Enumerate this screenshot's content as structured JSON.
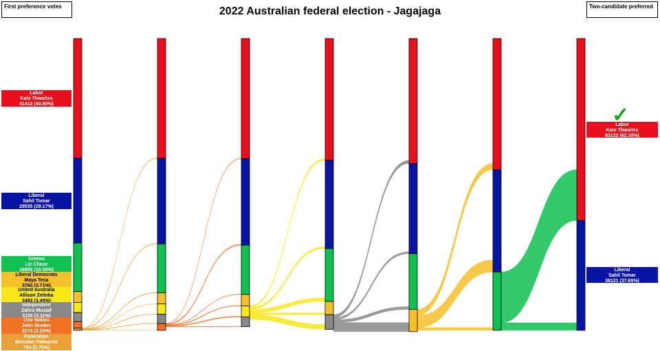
{
  "title": "2022 Australian federal election - Jagajaga",
  "first_pref_label": "First preference votes",
  "tcp_label": "Two-candidate preferred",
  "winner_icon": "checkmark-icon",
  "colors": {
    "labor": "#e8101c",
    "liberal": "#0a14a4",
    "greens": "#10c050",
    "libdem": "#f4c02c",
    "uap": "#f8e81c",
    "independent": "#888888",
    "onenation": "#f07024",
    "federation": "#e8a038"
  },
  "candidates": [
    {
      "party": "Labor",
      "name": "Kate Thwaites",
      "votes": "41412 (40.90%)",
      "color": "#e8101c"
    },
    {
      "party": "Liberal",
      "name": "Sahil Tomar",
      "votes": "29535 (29.17%)",
      "color": "#0a14a4"
    },
    {
      "party": "Greens",
      "name": "Liz Chase",
      "votes": "16855 (16.65%)",
      "color": "#10c050"
    },
    {
      "party": "Liberal Democrats",
      "name": "Maya Tesa",
      "votes": "3760 (3.71%)",
      "color": "#f4c02c"
    },
    {
      "party": "United Australia",
      "name": "Allison Zelinka",
      "votes": "3493 (3.45%)",
      "color": "#f8e81c"
    },
    {
      "party": "Independent",
      "name": "Zahra Mustaf",
      "votes": "3150 (3.11%)",
      "color": "#888888"
    },
    {
      "party": "One Nation",
      "name": "John Booker",
      "votes": "2274 (2.25%)",
      "color": "#f07024"
    },
    {
      "party": "Federation",
      "name": "Brendan Palmarini",
      "votes": "764 (0.75%)",
      "color": "#e8a038"
    }
  ],
  "final": [
    {
      "party": "Labor",
      "name": "Kate Thwaites",
      "votes": "63122 (62.35%)",
      "color": "#e8101c"
    },
    {
      "party": "Liberal",
      "name": "Sahil Tomar",
      "votes": "38121 (37.65%)",
      "color": "#0a14a4"
    }
  ],
  "chart_data": {
    "type": "sankey",
    "stages": 7,
    "order": [
      "Labor",
      "Liberal",
      "Greens",
      "Liberal Democrats",
      "United Australia",
      "Independent",
      "One Nation",
      "Federation"
    ],
    "counts": [
      [
        41412,
        29535,
        16855,
        3760,
        3493,
        3150,
        2274,
        764
      ],
      [
        41560,
        29700,
        16990,
        3810,
        3600,
        3250,
        2332,
        0
      ],
      [
        41700,
        29980,
        17100,
        3980,
        3850,
        3370,
        0,
        0
      ],
      [
        42250,
        30600,
        18350,
        4600,
        0,
        5080,
        0,
        0
      ],
      [
        43350,
        31300,
        19300,
        7730,
        0,
        0,
        0,
        0
      ],
      [
        45500,
        35500,
        20230,
        0,
        0,
        0,
        0,
        0
      ],
      [
        63122,
        38121,
        0,
        0,
        0,
        0,
        0,
        0
      ]
    ],
    "flows": [
      {
        "stage": 0,
        "from": "Federation",
        "to": {
          "Labor": 148,
          "Liberal": 165,
          "Greens": 135,
          "Liberal Democrats": 50,
          "United Australia": 107,
          "Independent": 100,
          "One Nation": 58
        }
      },
      {
        "stage": 1,
        "from": "One Nation",
        "to": {
          "Labor": 140,
          "Liberal": 280,
          "Greens": 110,
          "Liberal Democrats": 170,
          "United Australia": 250,
          "Independent": 120
        }
      },
      {
        "stage": 2,
        "from": "United Australia",
        "to": {
          "Labor": 550,
          "Liberal": 620,
          "Greens": 1250,
          "Liberal Democrats": 620,
          "Independent": 1710
        }
      },
      {
        "stage": 3,
        "from": "Independent",
        "to": {
          "Labor": 1100,
          "Liberal": 700,
          "Greens": 950,
          "Liberal Democrats": 3130
        }
      },
      {
        "stage": 4,
        "from": "Liberal Democrats",
        "to": {
          "Labor": 2150,
          "Liberal": 4200,
          "Greens": 930
        }
      },
      {
        "stage": 5,
        "from": "Greens",
        "to": {
          "Labor": 17622,
          "Liberal": 2621
        }
      }
    ]
  }
}
